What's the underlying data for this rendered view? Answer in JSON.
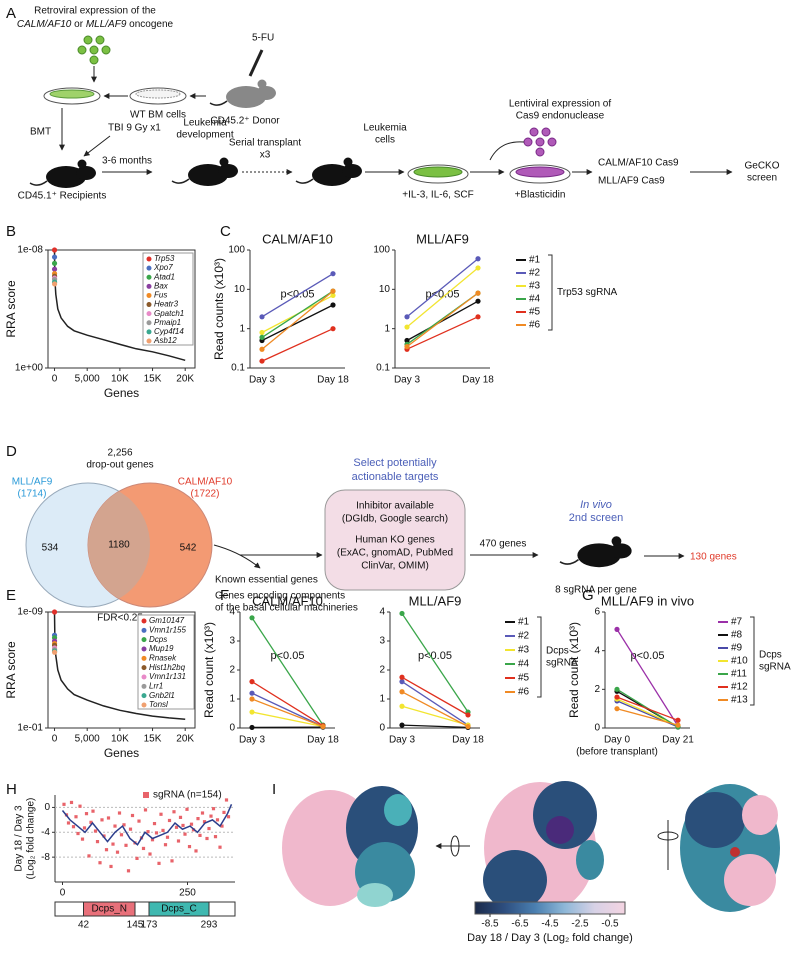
{
  "panel_labels": [
    "A",
    "B",
    "C",
    "D",
    "E",
    "F",
    "G",
    "H",
    "I"
  ],
  "schematic_a": {
    "virus_line1": "Retroviral expression of the",
    "virus_line2": [
      "CALM/AF10",
      " or ",
      "MLL/AF9",
      " oncogene"
    ],
    "drug": "5-FU",
    "wt_cells": "WT BM cells",
    "donor": "CD45.2⁺ Donor",
    "bmt": "BMT",
    "tbi": "TBI 9 Gy x1",
    "recipients": "CD45.1⁺ Recipients",
    "months": "3-6 months",
    "development": [
      "Leukemia",
      "development"
    ],
    "serial": [
      "Serial transplant",
      "x3"
    ],
    "leukemia_cells": [
      "Leukemia",
      "cells"
    ],
    "cytokines": "+IL-3, IL-6, SCF",
    "lenti": [
      "Lentiviral expression of",
      "Cas9 endonuclease"
    ],
    "blasticidin": "+Blasticidin",
    "lines": [
      "CALM/AF10 Cas9",
      "MLL/AF9 Cas9"
    ],
    "screen": [
      "GeCKO",
      "screen"
    ]
  },
  "venn_d": {
    "total": [
      "2,256",
      "drop-out genes"
    ],
    "left_name": "MLL/AF9",
    "left_count": "(1714)",
    "right_name": "CALM/AF10",
    "right_count": "(1722)",
    "left_only": 534,
    "overlap": 1180,
    "right_only": 542,
    "fdr": "FDR<0.25",
    "removed": [
      "Known essential genes",
      "Genes encoding components",
      "of the basal cellular machineries"
    ],
    "select": [
      "Select potentially",
      "actionable targets"
    ],
    "box": [
      "Inhibitor available",
      "(DGIdb, Google search)",
      "Human KO genes",
      "(ExAC, gnomAD, PubMed",
      "ClinVar, OMIM)"
    ],
    "passed": "470 genes",
    "invivo": [
      "In vivo",
      "2nd screen"
    ],
    "per_gene": "8 sgRNA per gene",
    "result": "130 genes"
  },
  "chart_data": [
    {
      "type": "rankplot",
      "xlabel": "Genes",
      "ylabel": "RRA score",
      "log_y": true,
      "y_inverted": true,
      "xlim": [
        -1000,
        21500
      ],
      "xticks": [
        0,
        {
          "value": 5000,
          "label": "5,000"
        },
        {
          "value": 10000,
          "label": "10K"
        },
        {
          "value": 15000,
          "label": "15K"
        },
        {
          "value": 20000,
          "label": "20K"
        }
      ],
      "ylim": [
        1e-08,
        1
      ],
      "yticks": [
        {
          "value": 1e-08,
          "label": "1e-08"
        },
        {
          "value": 1,
          "label": "1e+00"
        }
      ],
      "curve": {
        "color": "#222222",
        "x": [
          0,
          50,
          200,
          500,
          1000,
          2000,
          3000,
          5000,
          7500,
          10000,
          12500,
          15000,
          17500,
          20000
        ],
        "y": [
          1e-08,
          1e-06,
          1e-05,
          0.0001,
          0.0004,
          0.0015,
          0.003,
          0.006,
          0.012,
          0.025,
          0.05,
          0.08,
          0.15,
          0.3
        ]
      },
      "genes": {
        "names": [
          "Trp53",
          "Xpo7",
          "Atad1",
          "Bax",
          "Fus",
          "Heatr3",
          "Gpatch1",
          "Pmaip1",
          "Cyp4f14",
          "Asb12"
        ],
        "colors": [
          "#e0302a",
          "#4a6fc0",
          "#3aa64a",
          "#8a3fa0",
          "#f08a24",
          "#8b5a2b",
          "#e88ac8",
          "#9a9a9a",
          "#3aa890",
          "#f0a070"
        ],
        "ranks": [
          1,
          2,
          3,
          4,
          5,
          6,
          7,
          8,
          9,
          10
        ],
        "values": [
          1e-08,
          3e-08,
          8e-08,
          2e-07,
          4e-07,
          6e-07,
          8e-07,
          1e-06,
          1.5e-06,
          2e-06
        ]
      }
    },
    {
      "type": "slopegraph",
      "ylabel": "Read counts (x10³)",
      "log_y": true,
      "categories": [
        "Day 3",
        "Day 18"
      ],
      "ylim": [
        0.1,
        100
      ],
      "yticks": [
        0.1,
        1,
        10,
        100
      ],
      "legend_title": [
        "Trp53 sgRNA"
      ],
      "series": [
        {
          "name": "#1",
          "color": "#111111"
        },
        {
          "name": "#2",
          "color": "#5a5ab8"
        },
        {
          "name": "#3",
          "color": "#f2e530"
        },
        {
          "name": "#4",
          "color": "#3aa64a"
        },
        {
          "name": "#5",
          "color": "#e0301e"
        },
        {
          "name": "#6",
          "color": "#f08a24"
        }
      ],
      "subplots": [
        {
          "title": "CALM/AF10",
          "annotation": "p<0.05",
          "values": [
            [
              0.5,
              4
            ],
            [
              2,
              25
            ],
            [
              0.8,
              7
            ],
            [
              0.6,
              9
            ],
            [
              0.15,
              1
            ],
            [
              0.3,
              9
            ]
          ]
        },
        {
          "title": "MLL/AF9",
          "annotation": "p<0.05",
          "values": [
            [
              0.5,
              5
            ],
            [
              2,
              60
            ],
            [
              1.1,
              35
            ],
            [
              0.4,
              8
            ],
            [
              0.3,
              2
            ],
            [
              0.35,
              8
            ]
          ]
        }
      ]
    },
    {
      "type": "rankplot",
      "xlabel": "Genes",
      "ylabel": "RRA score",
      "log_y": true,
      "y_inverted": true,
      "xlim": [
        -1000,
        21500
      ],
      "xticks": [
        0,
        {
          "value": 5000,
          "label": "5,000"
        },
        {
          "value": 10000,
          "label": "10K"
        },
        {
          "value": 15000,
          "label": "15K"
        },
        {
          "value": 20000,
          "label": "20K"
        }
      ],
      "ylim": [
        1e-09,
        0.1
      ],
      "yticks": [
        {
          "value": 1e-09,
          "label": "1e-09"
        },
        {
          "value": 0.1,
          "label": "1e-01"
        }
      ],
      "curve": {
        "color": "#222222",
        "x": [
          0,
          50,
          200,
          500,
          1000,
          2000,
          3000,
          5000,
          7500,
          10000,
          12500,
          15000,
          17500,
          20000
        ],
        "y": [
          1e-09,
          1e-07,
          1e-06,
          1e-05,
          5e-05,
          0.0002,
          0.0005,
          0.0012,
          0.003,
          0.006,
          0.01,
          0.015,
          0.02,
          0.025
        ]
      },
      "genes": {
        "names": [
          "Gm10147",
          "Vmn1r155",
          "Dcps",
          "Mup19",
          "Rnasek",
          "Hist1h2bq",
          "Vmn1r131",
          "Lrr1",
          "Gnb2l1",
          "Tonsl"
        ],
        "colors": [
          "#e0302a",
          "#4a6fc0",
          "#3aa64a",
          "#8a3fa0",
          "#f08a24",
          "#8b5a2b",
          "#e88ac8",
          "#9a9a9a",
          "#3aa890",
          "#f0a070"
        ],
        "ranks": [
          1,
          2,
          3,
          4,
          5,
          6,
          7,
          8,
          9,
          10
        ],
        "values": [
          1e-09,
          4e-08,
          6e-08,
          1e-07,
          1.5e-07,
          2e-07,
          3e-07,
          4e-07,
          5e-07,
          6e-07
        ]
      }
    },
    {
      "type": "slopegraph",
      "ylabel": "Read count (x10³)",
      "log_y": false,
      "categories": [
        "Day 3",
        "Day 18"
      ],
      "ylim": [
        0,
        4
      ],
      "yticks": [
        0,
        1,
        2,
        3,
        4
      ],
      "legend_title": [
        "Dcps",
        "sgRNA"
      ],
      "series": [
        {
          "name": "#1",
          "color": "#111111"
        },
        {
          "name": "#2",
          "color": "#5a5ab8"
        },
        {
          "name": "#3",
          "color": "#f2e530"
        },
        {
          "name": "#4",
          "color": "#3aa64a"
        },
        {
          "name": "#5",
          "color": "#e0301e"
        },
        {
          "name": "#6",
          "color": "#f08a24"
        }
      ],
      "subplots": [
        {
          "title": "CALM/AF10",
          "annotation": "p<0.05",
          "values": [
            [
              0.02,
              0.03
            ],
            [
              1.2,
              0.05
            ],
            [
              0.55,
              0.05
            ],
            [
              3.8,
              0.1
            ],
            [
              1.6,
              0.08
            ],
            [
              1.0,
              0.05
            ]
          ]
        },
        {
          "title": "MLL/AF9",
          "annotation": "p<0.05",
          "values": [
            [
              0.1,
              0.02
            ],
            [
              1.6,
              0.1
            ],
            [
              0.75,
              0.1
            ],
            [
              3.95,
              0.55
            ],
            [
              1.75,
              0.45
            ],
            [
              1.25,
              0.05
            ]
          ]
        }
      ]
    },
    {
      "type": "slopegraph",
      "ylabel": "Read count (x10³)",
      "log_y": false,
      "categories": [
        "Day 0",
        "Day 21"
      ],
      "category_note": "(before transplant)",
      "ylim": [
        0,
        6
      ],
      "yticks": [
        0,
        2,
        4,
        6
      ],
      "legend_title": [
        "Dcps",
        "sgRNA"
      ],
      "series": [
        {
          "name": "#7",
          "color": "#9b30a8"
        },
        {
          "name": "#8",
          "color": "#111111"
        },
        {
          "name": "#9",
          "color": "#4a4aa8"
        },
        {
          "name": "#10",
          "color": "#f2e530"
        },
        {
          "name": "#11",
          "color": "#3aa64a"
        },
        {
          "name": "#12",
          "color": "#e0301e"
        },
        {
          "name": "#13",
          "color": "#f08a24"
        }
      ],
      "subplots": [
        {
          "title": "MLL/AF9 in vivo",
          "annotation": "p<0.05",
          "values": [
            [
              5.1,
              0.1
            ],
            [
              1.9,
              0.05
            ],
            [
              1.4,
              0.05
            ],
            [
              1.5,
              0.1
            ],
            [
              2.0,
              0.05
            ],
            [
              1.6,
              0.4
            ],
            [
              1.0,
              0.15
            ]
          ]
        }
      ]
    },
    {
      "type": "scatter",
      "ylabel": [
        "Day 18 / Day 3",
        "(Log₂ fold change)"
      ],
      "xlim": [
        -15,
        345
      ],
      "xticks": [
        0,
        250
      ],
      "ylim": [
        -12,
        2
      ],
      "yticks": [
        0,
        -4,
        -8
      ],
      "grid": true,
      "series": [
        {
          "name": "sgRNA (n=154)",
          "color": "#e8636a",
          "x": [
            3,
            8,
            12,
            18,
            22,
            27,
            31,
            35,
            40,
            44,
            48,
            53,
            57,
            61,
            66,
            70,
            75,
            79,
            83,
            88,
            92,
            97,
            101,
            105,
            110,
            114,
            118,
            123,
            127,
            132,
            136,
            140,
            145,
            149,
            153,
            158,
            162,
            166,
            171,
            175,
            180,
            184,
            188,
            193,
            197,
            201,
            206,
            210,
            214,
            219,
            223,
            228,
            232,
            236,
            241,
            245,
            249,
            254,
            258,
            262,
            267,
            271,
            275,
            280,
            284,
            289,
            293,
            297,
            302,
            306,
            310,
            315,
            319,
            323,
            328,
            332
          ],
          "y": [
            0.5,
            -1.2,
            -2.5,
            0.8,
            -3.1,
            -1.5,
            -4.2,
            0.2,
            -5.1,
            -3.3,
            -1.0,
            -7.8,
            -2.4,
            -0.6,
            -3.8,
            -5.5,
            -8.9,
            -2.0,
            -4.6,
            -6.8,
            -1.7,
            -9.5,
            -5.9,
            -3.0,
            -7.2,
            -0.9,
            -4.4,
            -2.8,
            -6.1,
            -10.2,
            -3.5,
            -1.3,
            -5.7,
            -8.2,
            -2.2,
            -4.9,
            -6.6,
            -0.4,
            -3.9,
            -7.5,
            -5.2,
            -2.6,
            -4.1,
            -9.0,
            -1.1,
            -3.7,
            -6.0,
            -4.8,
            -2.1,
            -8.6,
            -0.7,
            -3.2,
            -5.4,
            -1.6,
            -2.9,
            -4.3,
            -0.3,
            -6.3,
            -2.7,
            -3.6,
            -7.0,
            -1.8,
            -4.5,
            -0.9,
            -2.3,
            -5.0,
            -3.4,
            -1.4,
            -0.2,
            -4.7,
            -2.0,
            -6.4,
            -3.0,
            -0.8,
            1.2,
            -1.5
          ]
        }
      ],
      "trend": {
        "color": "#2c3e8c",
        "x": [
          0,
          15,
          30,
          45,
          60,
          75,
          90,
          105,
          120,
          135,
          150,
          165,
          180,
          195,
          210,
          225,
          240,
          255,
          270,
          285,
          300,
          315,
          330,
          338
        ],
        "y": [
          -0.5,
          -2,
          -3,
          -4,
          -2.5,
          -4,
          -5.5,
          -4,
          -3,
          -5,
          -6,
          -4,
          -5,
          -4.5,
          -4,
          -2.5,
          -3.5,
          -3,
          -4,
          -2.5,
          -2,
          -3,
          -1,
          0.5
        ]
      },
      "domains": [
        {
          "name": "Dcps_N",
          "start": 42,
          "end": 145,
          "color": "#e8707a"
        },
        {
          "name": "Dcps_C",
          "start": 173,
          "end": 293,
          "color": "#3fb8b0"
        }
      ]
    }
  ],
  "structure_i": {
    "colorbar": {
      "colors": [
        "#1b2a4a",
        "#2e4f80",
        "#4a7fb0",
        "#8fb8d8",
        "#d8d2e6",
        "#f4d4e2"
      ],
      "lim": [
        -9.5,
        0.5
      ],
      "ticks": [
        -8.5,
        -6.5,
        -4.5,
        -2.5,
        -0.5
      ],
      "label": "Day 18 / Day 3 (Log₂ fold change)"
    }
  }
}
